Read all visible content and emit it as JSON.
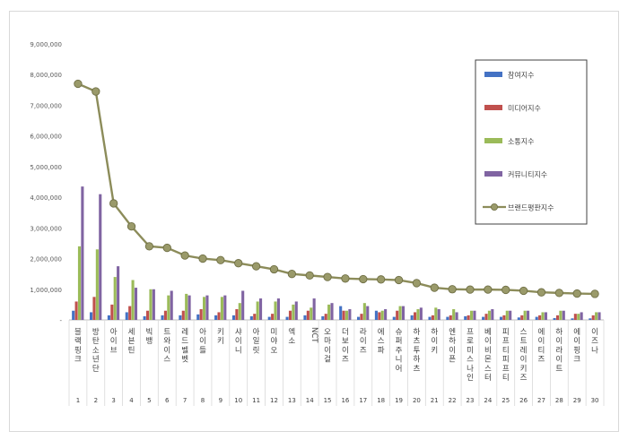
{
  "chart_data": {
    "type": "bar",
    "title": "",
    "xlabel": "",
    "ylabel": "",
    "ylim": [
      0,
      9000000
    ],
    "yticks": [
      "-",
      "1,000,000",
      "2,000,000",
      "3,000,000",
      "4,000,000",
      "5,000,000",
      "6,000,000",
      "7,000,000",
      "8,000,000",
      "9,000,000"
    ],
    "grid": false,
    "legend_position": "top-right",
    "categories": [
      "블랙핑크",
      "방탄소년단",
      "아이브",
      "세븐틴",
      "빅뱅",
      "트와이스",
      "레드벨벳",
      "아이들",
      "키키",
      "샤이니",
      "아일릿",
      "미야오",
      "엑소",
      "NCT",
      "오마이걸",
      "더보이즈",
      "라이즈",
      "에스파",
      "슈퍼주니어",
      "하츠투하츠",
      "하이키",
      "엔하이픈",
      "프로미스나인",
      "베이비몬스터",
      "피프티피프티",
      "스트레이키즈",
      "에이티즈",
      "하이라이트",
      "에이핑크",
      "이즈나"
    ],
    "ranks": [
      "1",
      "2",
      "3",
      "4",
      "5",
      "6",
      "7",
      "8",
      "9",
      "10",
      "11",
      "12",
      "13",
      "14",
      "15",
      "16",
      "17",
      "18",
      "19",
      "20",
      "21",
      "22",
      "23",
      "24",
      "25",
      "26",
      "27",
      "28",
      "29",
      "30"
    ],
    "series": [
      {
        "name": "참여지수",
        "kind": "bar",
        "color": "#4472c4",
        "values": [
          300000,
          250000,
          150000,
          250000,
          120000,
          150000,
          150000,
          180000,
          150000,
          150000,
          120000,
          100000,
          100000,
          150000,
          120000,
          450000,
          100000,
          300000,
          100000,
          150000,
          100000,
          100000,
          120000,
          100000,
          100000,
          80000,
          100000,
          60000,
          50000,
          50000
        ]
      },
      {
        "name": "미디어지수",
        "kind": "bar",
        "color": "#c0504d",
        "values": [
          600000,
          750000,
          500000,
          450000,
          300000,
          300000,
          300000,
          350000,
          250000,
          350000,
          200000,
          200000,
          300000,
          300000,
          200000,
          300000,
          200000,
          250000,
          300000,
          250000,
          150000,
          150000,
          150000,
          200000,
          150000,
          150000,
          150000,
          150000,
          200000,
          150000
        ]
      },
      {
        "name": "소통지수",
        "kind": "bar",
        "color": "#9bbb59",
        "values": [
          2400000,
          2300000,
          1400000,
          1300000,
          1000000,
          800000,
          850000,
          750000,
          750000,
          550000,
          600000,
          600000,
          500000,
          400000,
          500000,
          300000,
          550000,
          300000,
          450000,
          350000,
          400000,
          350000,
          300000,
          300000,
          300000,
          300000,
          250000,
          300000,
          200000,
          250000
        ]
      },
      {
        "name": "커뮤니티지수",
        "kind": "bar",
        "color": "#8064a2",
        "values": [
          4350000,
          4100000,
          1750000,
          1050000,
          1000000,
          950000,
          800000,
          800000,
          800000,
          950000,
          700000,
          700000,
          600000,
          700000,
          550000,
          350000,
          450000,
          350000,
          450000,
          400000,
          350000,
          250000,
          300000,
          350000,
          300000,
          300000,
          250000,
          300000,
          250000,
          250000
        ]
      },
      {
        "name": "브랜드평판지수",
        "kind": "line",
        "color": "#8c8c5a",
        "values": [
          7700000,
          7450000,
          3800000,
          3050000,
          2400000,
          2350000,
          2100000,
          2000000,
          1950000,
          1850000,
          1750000,
          1650000,
          1500000,
          1450000,
          1400000,
          1350000,
          1330000,
          1320000,
          1300000,
          1200000,
          1050000,
          1000000,
          990000,
          990000,
          980000,
          950000,
          900000,
          880000,
          860000,
          850000
        ]
      }
    ]
  }
}
